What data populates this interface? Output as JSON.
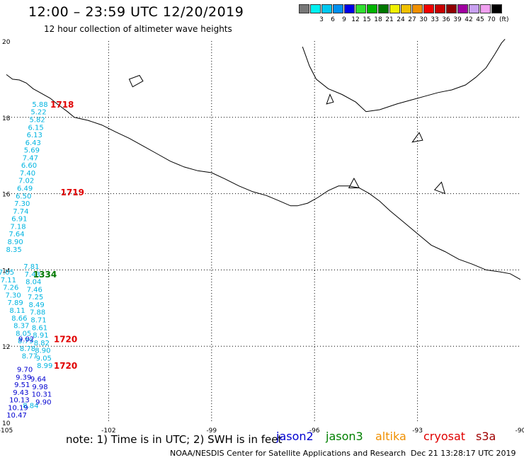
{
  "header": {
    "title": "12:00 – 23:59 UTC 12/20/2019",
    "subtitle": "12 hour collection of altimeter wave heights"
  },
  "legend": {
    "unit": "(ft)",
    "bins": [
      {
        "color": "#777777",
        "label": ""
      },
      {
        "color": "#00f0f0",
        "label": "3"
      },
      {
        "color": "#00c8f0",
        "label": "6"
      },
      {
        "color": "#0090f0",
        "label": "9"
      },
      {
        "color": "#0000e8",
        "label": "12"
      },
      {
        "color": "#30e030",
        "label": "15"
      },
      {
        "color": "#00b400",
        "label": "18"
      },
      {
        "color": "#007800",
        "label": "21"
      },
      {
        "color": "#f0f000",
        "label": "24"
      },
      {
        "color": "#f0c000",
        "label": "27"
      },
      {
        "color": "#f09000",
        "label": "30"
      },
      {
        "color": "#f00000",
        "label": "33"
      },
      {
        "color": "#c80000",
        "label": "36"
      },
      {
        "color": "#900000",
        "label": "39"
      },
      {
        "color": "#a000a0",
        "label": "42"
      },
      {
        "color": "#c8a0f0",
        "label": "45"
      },
      {
        "color": "#f0a0f0",
        "label": "70"
      },
      {
        "color": "#000000",
        "label": ""
      }
    ]
  },
  "map": {
    "lon_range": [
      -105,
      -90
    ],
    "lat_range": [
      10,
      20
    ],
    "lon_ticks": [
      {
        "value": -105,
        "label": "-105"
      },
      {
        "value": -102,
        "label": "-102"
      },
      {
        "value": -99,
        "label": "-99"
      },
      {
        "value": -96,
        "label": "-96"
      },
      {
        "value": -93,
        "label": "-93"
      },
      {
        "value": -90,
        "label": "-90"
      }
    ],
    "lat_ticks": [
      {
        "value": 10,
        "label": "10"
      },
      {
        "value": 12,
        "label": "12"
      },
      {
        "value": 14,
        "label": "14"
      },
      {
        "value": 16,
        "label": "16"
      },
      {
        "value": 18,
        "label": "18"
      },
      {
        "value": 20,
        "label": "20"
      }
    ],
    "coastline": [
      [
        -104.98,
        19.12
      ],
      [
        -104.8,
        19.0
      ],
      [
        -104.6,
        18.98
      ],
      [
        -104.4,
        18.9
      ],
      [
        -104.2,
        18.75
      ],
      [
        -104.0,
        18.65
      ],
      [
        -103.7,
        18.5
      ],
      [
        -103.5,
        18.35
      ],
      [
        -103.2,
        18.15
      ],
      [
        -103.0,
        18.0
      ],
      [
        -102.6,
        17.92
      ],
      [
        -102.2,
        17.8
      ],
      [
        -101.8,
        17.62
      ],
      [
        -101.4,
        17.45
      ],
      [
        -101.0,
        17.25
      ],
      [
        -100.6,
        17.05
      ],
      [
        -100.2,
        16.85
      ],
      [
        -99.8,
        16.7
      ],
      [
        -99.4,
        16.6
      ],
      [
        -99.0,
        16.55
      ],
      [
        -98.6,
        16.38
      ],
      [
        -98.2,
        16.2
      ],
      [
        -97.8,
        16.05
      ],
      [
        -97.4,
        15.95
      ],
      [
        -97.0,
        15.8
      ],
      [
        -96.7,
        15.68
      ],
      [
        -96.5,
        15.68
      ],
      [
        -96.2,
        15.75
      ],
      [
        -95.9,
        15.9
      ],
      [
        -95.6,
        16.08
      ],
      [
        -95.3,
        16.2
      ],
      [
        -95.0,
        16.2
      ],
      [
        -94.7,
        16.15
      ],
      [
        -94.4,
        16.0
      ],
      [
        -94.1,
        15.8
      ],
      [
        -93.8,
        15.55
      ],
      [
        -93.4,
        15.25
      ],
      [
        -93.0,
        14.95
      ],
      [
        -92.6,
        14.65
      ],
      [
        -92.2,
        14.48
      ],
      [
        -91.8,
        14.28
      ],
      [
        -91.4,
        14.15
      ],
      [
        -91.0,
        14.0
      ],
      [
        -90.6,
        13.95
      ],
      [
        -90.3,
        13.9
      ],
      [
        -90.0,
        13.75
      ]
    ],
    "gulf_coast": [
      [
        -96.35,
        19.85
      ],
      [
        -96.25,
        19.6
      ],
      [
        -96.15,
        19.35
      ],
      [
        -95.95,
        19.0
      ],
      [
        -95.6,
        18.75
      ],
      [
        -95.2,
        18.6
      ],
      [
        -94.8,
        18.4
      ],
      [
        -94.5,
        18.15
      ],
      [
        -94.1,
        18.2
      ],
      [
        -93.6,
        18.35
      ],
      [
        -93.2,
        18.45
      ],
      [
        -92.8,
        18.55
      ],
      [
        -92.4,
        18.65
      ],
      [
        -92.0,
        18.72
      ],
      [
        -91.6,
        18.85
      ],
      [
        -91.3,
        19.05
      ],
      [
        -91.0,
        19.3
      ],
      [
        -90.75,
        19.65
      ],
      [
        -90.55,
        19.95
      ],
      [
        -90.45,
        20.05
      ]
    ],
    "islands": [
      [
        [
          -101.3,
          18.8
        ],
        [
          -101.0,
          18.95
        ],
        [
          -101.1,
          19.1
        ],
        [
          -101.4,
          19.0
        ]
      ],
      [
        [
          -95.65,
          18.35
        ],
        [
          -95.45,
          18.4
        ],
        [
          -95.55,
          18.6
        ]
      ],
      [
        [
          -93.15,
          17.35
        ],
        [
          -92.85,
          17.4
        ],
        [
          -92.95,
          17.6
        ]
      ],
      [
        [
          -95.0,
          16.15
        ],
        [
          -94.7,
          16.15
        ],
        [
          -94.85,
          16.4
        ]
      ],
      [
        [
          -92.5,
          16.1
        ],
        [
          -92.2,
          16.0
        ],
        [
          -92.3,
          16.3
        ]
      ]
    ],
    "orbit_labels": [
      {
        "text": "1718",
        "lon": -103.7,
        "lat": 18.35,
        "color": "#e00000"
      },
      {
        "text": "1719",
        "lon": -103.4,
        "lat": 16.05,
        "color": "#e00000"
      },
      {
        "text": "1334",
        "lon": -104.2,
        "lat": 13.9,
        "color": "#007800"
      },
      {
        "text": "1720",
        "lon": -103.6,
        "lat": 12.2,
        "color": "#e00000"
      },
      {
        "text": "1720",
        "lon": -103.6,
        "lat": 11.5,
        "color": "#e00000"
      }
    ],
    "tracks": [
      {
        "color": "#00b4e0",
        "points": [
          {
            "lon": -104.0,
            "lat": 18.35,
            "v": "5.88"
          },
          {
            "lon": -104.04,
            "lat": 18.15,
            "v": "5.22"
          },
          {
            "lon": -104.08,
            "lat": 17.95,
            "v": "5.82"
          },
          {
            "lon": -104.12,
            "lat": 17.75,
            "v": "6.15"
          },
          {
            "lon": -104.16,
            "lat": 17.55,
            "v": "6.13"
          },
          {
            "lon": -104.2,
            "lat": 17.35,
            "v": "6.43"
          },
          {
            "lon": -104.24,
            "lat": 17.15,
            "v": "5.69"
          },
          {
            "lon": -104.28,
            "lat": 16.95,
            "v": "7.47"
          },
          {
            "lon": -104.32,
            "lat": 16.75,
            "v": "6.60"
          },
          {
            "lon": -104.36,
            "lat": 16.55,
            "v": "7.40"
          },
          {
            "lon": -104.4,
            "lat": 16.35,
            "v": "7.02"
          },
          {
            "lon": -104.44,
            "lat": 16.15,
            "v": "6.49"
          },
          {
            "lon": -104.48,
            "lat": 15.95,
            "v": "6.50"
          },
          {
            "lon": -104.52,
            "lat": 15.75,
            "v": "7.30"
          },
          {
            "lon": -104.56,
            "lat": 15.55,
            "v": "7.74"
          },
          {
            "lon": -104.6,
            "lat": 15.35,
            "v": "6.91"
          },
          {
            "lon": -104.64,
            "lat": 15.15,
            "v": "7.18"
          },
          {
            "lon": -104.68,
            "lat": 14.95,
            "v": "7.64"
          },
          {
            "lon": -104.72,
            "lat": 14.75,
            "v": "8.90"
          },
          {
            "lon": -104.76,
            "lat": 14.55,
            "v": "8.35"
          }
        ]
      },
      {
        "color": "#00b4e0",
        "points": [
          {
            "lon": -104.98,
            "lat": 13.95,
            "v": "7.05"
          },
          {
            "lon": -104.92,
            "lat": 13.75,
            "v": "7.11"
          },
          {
            "lon": -104.85,
            "lat": 13.55,
            "v": "7.26"
          },
          {
            "lon": -104.78,
            "lat": 13.35,
            "v": "7.30"
          },
          {
            "lon": -104.72,
            "lat": 13.15,
            "v": "7.89"
          },
          {
            "lon": -104.66,
            "lat": 12.95,
            "v": "8.11"
          },
          {
            "lon": -104.6,
            "lat": 12.75,
            "v": "8.66"
          },
          {
            "lon": -104.54,
            "lat": 12.55,
            "v": "8.37"
          },
          {
            "lon": -104.48,
            "lat": 12.35,
            "v": "8.05"
          },
          {
            "lon": -104.42,
            "lat": 12.15,
            "v": "8.79"
          },
          {
            "lon": -104.36,
            "lat": 11.95,
            "v": "8.78"
          },
          {
            "lon": -104.3,
            "lat": 11.75,
            "v": "8.77"
          }
        ]
      },
      {
        "color": "#00b4e0",
        "points": [
          {
            "lon": -104.25,
            "lat": 14.1,
            "v": "7.81"
          },
          {
            "lon": -104.22,
            "lat": 13.9,
            "v": "7.43"
          },
          {
            "lon": -104.19,
            "lat": 13.7,
            "v": "8.04"
          },
          {
            "lon": -104.16,
            "lat": 13.5,
            "v": "7.46"
          },
          {
            "lon": -104.13,
            "lat": 13.3,
            "v": "7.25"
          },
          {
            "lon": -104.1,
            "lat": 13.1,
            "v": "8.49"
          },
          {
            "lon": -104.07,
            "lat": 12.9,
            "v": "7.88"
          },
          {
            "lon": -104.04,
            "lat": 12.7,
            "v": "8.71"
          },
          {
            "lon": -104.01,
            "lat": 12.5,
            "v": "8.61"
          },
          {
            "lon": -103.98,
            "lat": 12.3,
            "v": "8.91"
          },
          {
            "lon": -103.95,
            "lat": 12.1,
            "v": "8.82"
          },
          {
            "lon": -103.92,
            "lat": 11.9,
            "v": "8.90"
          },
          {
            "lon": -103.89,
            "lat": 11.7,
            "v": "9.05"
          },
          {
            "lon": -103.86,
            "lat": 11.5,
            "v": "8.99"
          },
          {
            "lon": -104.27,
            "lat": 10.45,
            "v": "8.84"
          }
        ]
      },
      {
        "color": "#0000d0",
        "points": [
          {
            "lon": -104.4,
            "lat": 12.2,
            "v": "9.02"
          },
          {
            "lon": -104.44,
            "lat": 11.4,
            "v": "9.70"
          },
          {
            "lon": -104.48,
            "lat": 11.2,
            "v": "9.39"
          },
          {
            "lon": -104.52,
            "lat": 11.0,
            "v": "9.51"
          },
          {
            "lon": -104.56,
            "lat": 10.8,
            "v": "9.43"
          },
          {
            "lon": -104.6,
            "lat": 10.6,
            "v": "10.13"
          },
          {
            "lon": -104.64,
            "lat": 10.4,
            "v": "10.19"
          },
          {
            "lon": -104.68,
            "lat": 10.2,
            "v": "10.47"
          }
        ]
      },
      {
        "color": "#0000d0",
        "points": [
          {
            "lon": -104.05,
            "lat": 11.15,
            "v": "9.64"
          },
          {
            "lon": -104.0,
            "lat": 10.95,
            "v": "9.98"
          },
          {
            "lon": -103.95,
            "lat": 10.75,
            "v": "10.31"
          },
          {
            "lon": -103.9,
            "lat": 10.55,
            "v": "9.90"
          }
        ]
      }
    ]
  },
  "footer": {
    "note": "note:  1)  Time is in UTC;  2)  SWH is in feet",
    "satellites": [
      {
        "name": "jason2",
        "color": "#0000d0"
      },
      {
        "name": "jason3",
        "color": "#008000"
      },
      {
        "name": "altika",
        "color": "#f09000"
      },
      {
        "name": "cryosat",
        "color": "#e00000"
      },
      {
        "name": "s3a",
        "color": "#a00000"
      }
    ],
    "credit": "NOAA/NESDIS Center for Satellite Applications and Research",
    "timestamp": "Dec 21 13:28:17 UTC 2019"
  }
}
